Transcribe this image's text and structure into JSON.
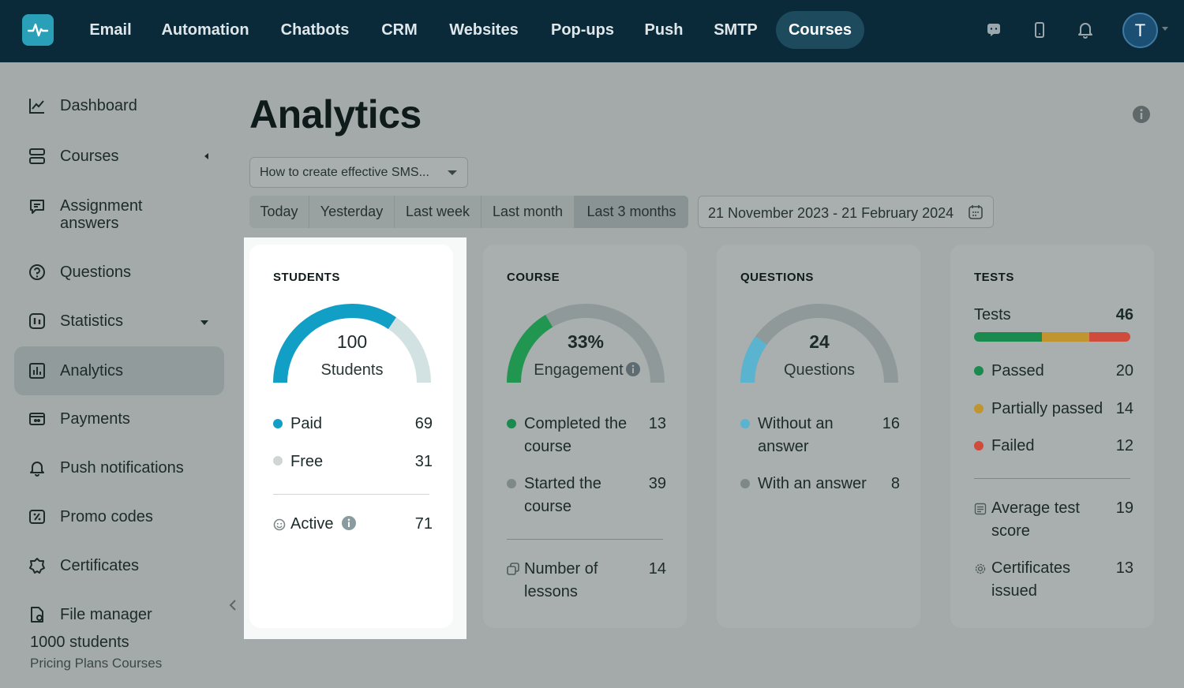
{
  "topnav": {
    "items": [
      "Email",
      "Automation",
      "Chatbots",
      "CRM",
      "Websites",
      "Pop-ups",
      "Push",
      "SMTP",
      "Courses"
    ],
    "active": "Courses",
    "avatar_letter": "T"
  },
  "sidebar": {
    "items": [
      {
        "label": "Dashboard",
        "icon": "chart-line-icon"
      },
      {
        "label": "Courses",
        "icon": "stack-icon"
      },
      {
        "label": "Assignment answers",
        "icon": "chat-edit-icon"
      },
      {
        "label": "Questions",
        "icon": "question-circle-icon"
      },
      {
        "label": "Statistics",
        "icon": "stats-icon"
      },
      {
        "label": "Analytics",
        "icon": "bar-chart-icon"
      },
      {
        "label": "Payments",
        "icon": "wallet-icon"
      },
      {
        "label": "Push notifications",
        "icon": "bell-icon"
      },
      {
        "label": "Promo codes",
        "icon": "ticket-percent-icon"
      },
      {
        "label": "Certificates",
        "icon": "badge-icon"
      },
      {
        "label": "File manager",
        "icon": "file-icon"
      }
    ],
    "assignment_line1": "Assignment",
    "assignment_line2": "answers",
    "plan_title": "1000 students",
    "plan_sub": "Pricing Plans Courses"
  },
  "page": {
    "title": "Analytics",
    "course_select": "How to create effective SMS...",
    "ranges": [
      "Today",
      "Yesterday",
      "Last week",
      "Last month",
      "Last 3 months"
    ],
    "active_range": "Last 3 months",
    "date_range": "21 November 2023 - 21 February 2024"
  },
  "students": {
    "title": "STUDENTS",
    "count": "100",
    "count_label": "Students",
    "gauge_fill": 0.69,
    "paid_label": "Paid",
    "paid": "69",
    "free_label": "Free",
    "free": "31",
    "active_label": "Active",
    "active": "71"
  },
  "course": {
    "title": "COURSE",
    "engagement": "33%",
    "engagement_label": "Engagement",
    "gauge_fill": 0.33,
    "completed_l1": "Completed the",
    "completed_l2": "course",
    "completed": "13",
    "started_l1": "Started the",
    "started_l2": "course",
    "started": "39",
    "lessons_l1": "Number of",
    "lessons_l2": "lessons",
    "lessons": "14"
  },
  "questions": {
    "title": "QUESTIONS",
    "count": "24",
    "count_label": "Questions",
    "gauge_fill": 0.2,
    "without_l1": "Without an",
    "without_l2": "answer",
    "without": "16",
    "with_label": "With an answer",
    "with": "8"
  },
  "tests": {
    "title": "TESTS",
    "tests_label": "Tests",
    "tests": "46",
    "passed_label": "Passed",
    "passed": "20",
    "partial_label": "Partially passed",
    "partial": "14",
    "failed_label": "Failed",
    "failed": "12",
    "avg_l1": "Average test",
    "avg_l2": "score",
    "avg": "19",
    "cert_l1": "Certificates",
    "cert_l2": "issued",
    "cert": "13"
  },
  "colors": {
    "students_gauge": "#119fc5",
    "course_gauge": "#219651",
    "questions_gauge": "#5ab4cf",
    "passed": "#1a8a4e",
    "partial": "#c0952f",
    "failed": "#cf4c3c"
  }
}
